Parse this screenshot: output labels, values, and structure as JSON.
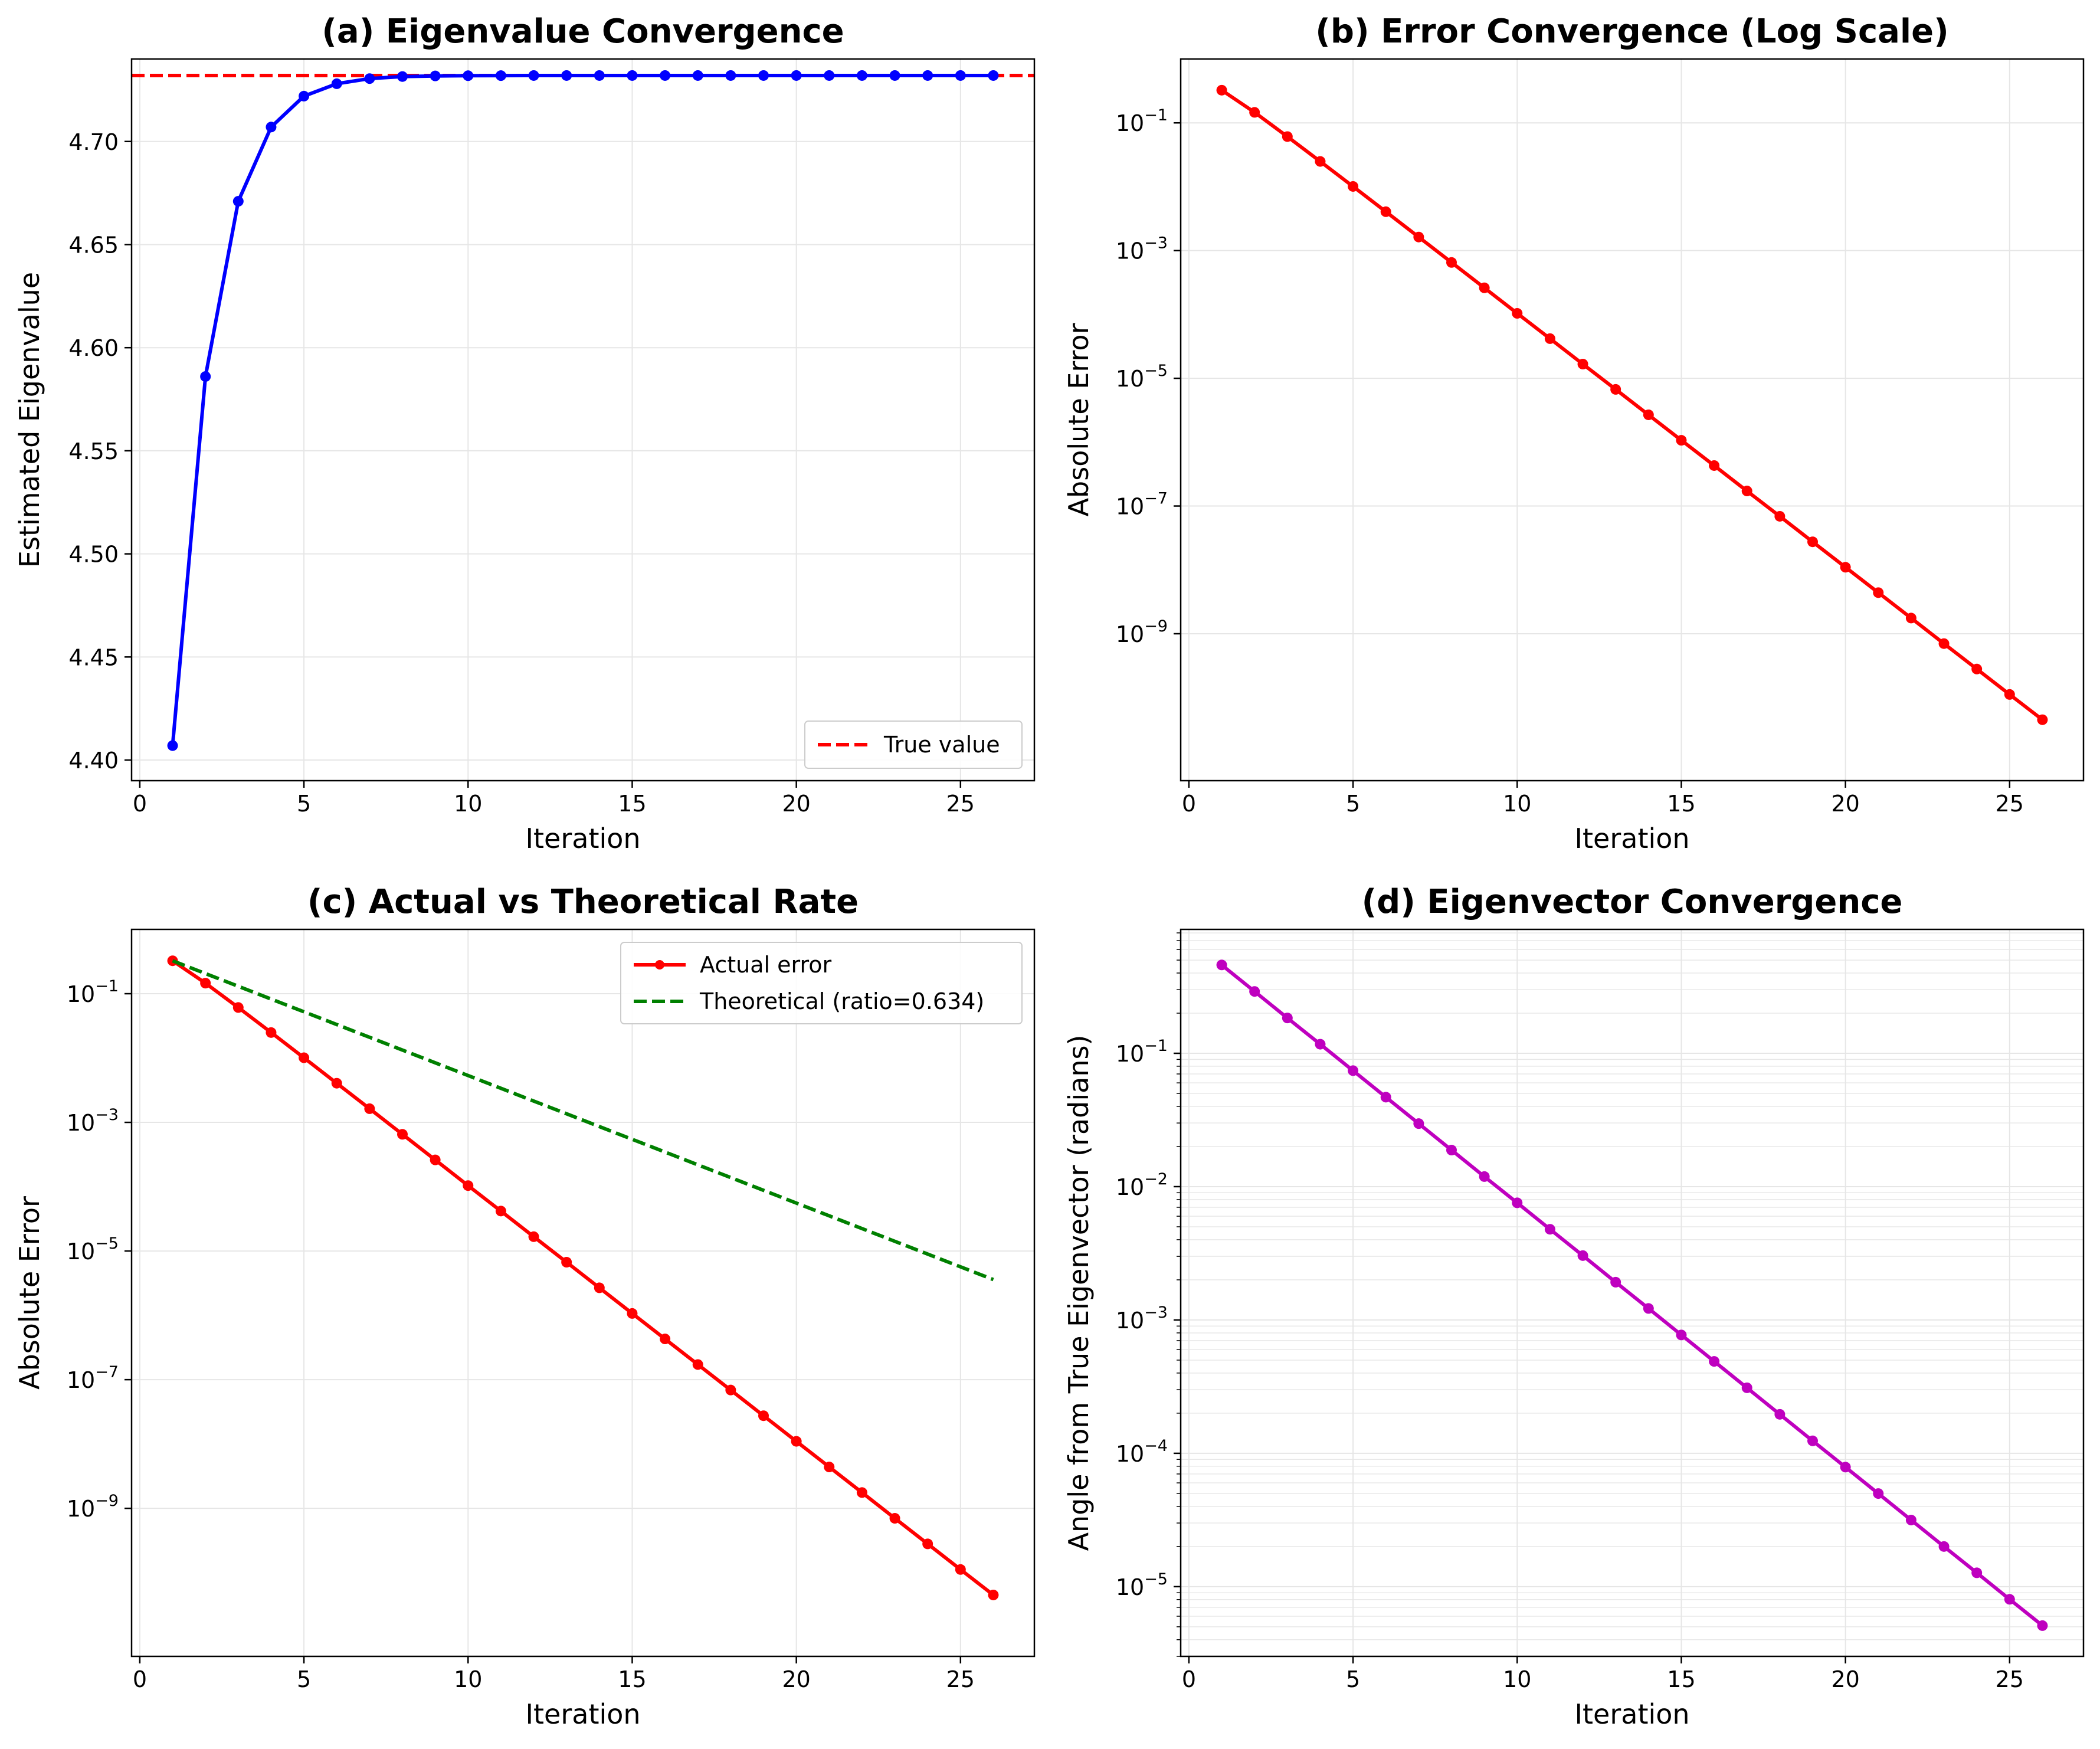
{
  "colors": {
    "blue": "#0000ff",
    "red": "#ff0000",
    "green": "#008000",
    "magenta": "#bf00bf",
    "grid": "#e6e6e6"
  },
  "chart_data": [
    {
      "type": "line",
      "title": "(a) Eigenvalue Convergence",
      "xlabel": "Iteration",
      "ylabel": "Estimated Eigenvalue",
      "xlim": [
        -0.25,
        27.25
      ],
      "ylim": [
        4.39,
        4.74
      ],
      "yscale": "linear",
      "xticks": [
        0,
        5,
        10,
        15,
        20,
        25
      ],
      "yticks": [
        4.4,
        4.45,
        4.5,
        4.55,
        4.6,
        4.65,
        4.7
      ],
      "ytick_labels": [
        "4.40",
        "4.45",
        "4.50",
        "4.55",
        "4.60",
        "4.65",
        "4.70"
      ],
      "grid": true,
      "legend_position": "lower-right",
      "series": [
        {
          "name": "",
          "color": "#0000ff",
          "style": "solid",
          "marker": true,
          "x": [
            1,
            2,
            3,
            4,
            5,
            6,
            7,
            8,
            9,
            10,
            11,
            12,
            13,
            14,
            15,
            16,
            17,
            18,
            19,
            20,
            21,
            22,
            23,
            24,
            25,
            26
          ],
          "y": [
            4.407,
            4.586,
            4.671,
            4.707,
            4.722,
            4.728,
            4.7305,
            4.7315,
            4.7318,
            4.7319,
            4.73195,
            4.732,
            4.732,
            4.732,
            4.732,
            4.732,
            4.732,
            4.732,
            4.732,
            4.732,
            4.732,
            4.732,
            4.732,
            4.732,
            4.732,
            4.732
          ]
        }
      ],
      "hlines": [
        {
          "name": "True value",
          "y": 4.732,
          "color": "#ff0000",
          "style": "dashed"
        }
      ]
    },
    {
      "type": "line",
      "title": "(b) Error Convergence (Log Scale)",
      "xlabel": "Iteration",
      "ylabel": "Absolute Error",
      "xlim": [
        -0.25,
        27.25
      ],
      "ylim": [
        5e-12,
        1
      ],
      "yscale": "log",
      "xticks": [
        0,
        5,
        10,
        15,
        20,
        25
      ],
      "yticks": [
        0.1,
        0.001,
        1e-05,
        1e-07,
        1e-09
      ],
      "ytick_labels": [
        [
          "10",
          "−1"
        ],
        [
          "10",
          "−3"
        ],
        [
          "10",
          "−5"
        ],
        [
          "10",
          "−7"
        ],
        [
          "10",
          "−9"
        ]
      ],
      "grid": true,
      "series": [
        {
          "name": "",
          "color": "#ff0000",
          "style": "solid",
          "marker": true,
          "x": [
            1,
            2,
            3,
            4,
            5,
            6,
            7,
            8,
            9,
            10,
            11,
            12,
            13,
            14,
            15,
            16,
            17,
            18,
            19,
            20,
            21,
            22,
            23,
            24,
            25,
            26
          ],
          "y": [
            0.325,
            0.146,
            0.061,
            0.0249,
            0.0101,
            0.00406,
            0.00163,
            0.000652,
            0.000261,
            0.000104,
            4.18e-05,
            1.67e-05,
            6.7e-06,
            2.68e-06,
            1.07e-06,
            4.3e-07,
            1.72e-07,
            6.9e-08,
            2.75e-08,
            1.1e-08,
            4.4e-09,
            1.76e-09,
            7e-10,
            2.8e-10,
            1.12e-10,
            4.5e-11
          ]
        }
      ]
    },
    {
      "type": "line",
      "title": "(c) Actual vs Theoretical Rate",
      "xlabel": "Iteration",
      "ylabel": "Absolute Error",
      "xlim": [
        -0.25,
        27.25
      ],
      "ylim": [
        5e-12,
        1
      ],
      "yscale": "log",
      "xticks": [
        0,
        5,
        10,
        15,
        20,
        25
      ],
      "yticks": [
        0.1,
        0.001,
        1e-05,
        1e-07,
        1e-09
      ],
      "ytick_labels": [
        [
          "10",
          "−1"
        ],
        [
          "10",
          "−3"
        ],
        [
          "10",
          "−5"
        ],
        [
          "10",
          "−7"
        ],
        [
          "10",
          "−9"
        ]
      ],
      "grid": true,
      "legend_position": "top-right",
      "series": [
        {
          "name": "Actual error",
          "color": "#ff0000",
          "style": "solid",
          "marker": true,
          "x": [
            1,
            2,
            3,
            4,
            5,
            6,
            7,
            8,
            9,
            10,
            11,
            12,
            13,
            14,
            15,
            16,
            17,
            18,
            19,
            20,
            21,
            22,
            23,
            24,
            25,
            26
          ],
          "y": [
            0.325,
            0.146,
            0.061,
            0.0249,
            0.0101,
            0.00406,
            0.00163,
            0.000652,
            0.000261,
            0.000104,
            4.18e-05,
            1.67e-05,
            6.7e-06,
            2.68e-06,
            1.07e-06,
            4.3e-07,
            1.72e-07,
            6.9e-08,
            2.75e-08,
            1.1e-08,
            4.4e-09,
            1.76e-09,
            7e-10,
            2.8e-10,
            1.12e-10,
            4.5e-11
          ]
        },
        {
          "name": "Theoretical (ratio=0.634)",
          "color": "#008000",
          "style": "dashed",
          "marker": false,
          "x": [
            1,
            26
          ],
          "y": [
            0.325,
            3.6e-06
          ]
        }
      ]
    },
    {
      "type": "line",
      "title": "(d) Eigenvector Convergence",
      "xlabel": "Iteration",
      "ylabel": "Angle from True Eigenvector (radians)",
      "xlim": [
        -0.25,
        27.25
      ],
      "ylim": [
        3e-06,
        0.85
      ],
      "yscale": "log",
      "xticks": [
        0,
        5,
        10,
        15,
        20,
        25
      ],
      "yticks": [
        0.1,
        0.01,
        0.001,
        0.0001,
        1e-05
      ],
      "ytick_labels": [
        [
          "10",
          "−1"
        ],
        [
          "10",
          "−2"
        ],
        [
          "10",
          "−3"
        ],
        [
          "10",
          "−4"
        ],
        [
          "10",
          "−5"
        ]
      ],
      "grid": true,
      "minor_grid": true,
      "series": [
        {
          "name": "",
          "color": "#bf00bf",
          "style": "solid",
          "marker": true,
          "x": [
            1,
            2,
            3,
            4,
            5,
            6,
            7,
            8,
            9,
            10,
            11,
            12,
            13,
            14,
            15,
            16,
            17,
            18,
            19,
            20,
            21,
            22,
            23,
            24,
            25,
            26
          ],
          "y": [
            0.46,
            0.291,
            0.184,
            0.117,
            0.0741,
            0.0469,
            0.0297,
            0.0188,
            0.0119,
            0.00756,
            0.00479,
            0.00304,
            0.00192,
            0.00122,
            0.000772,
            0.000489,
            0.00031,
            0.000196,
            0.000124,
            7.88e-05,
            4.99e-05,
            3.16e-05,
            2e-05,
            1.27e-05,
            8.04e-06,
            5.1e-06
          ]
        }
      ]
    }
  ]
}
